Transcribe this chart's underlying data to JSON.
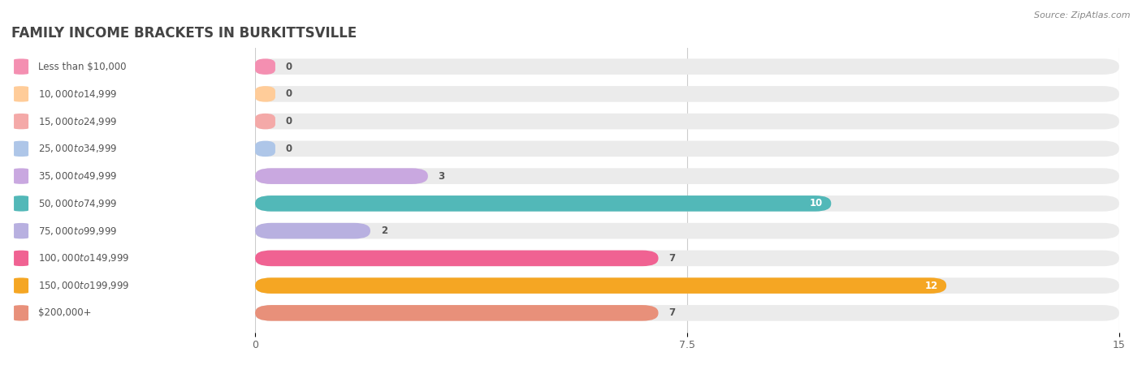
{
  "title": "FAMILY INCOME BRACKETS IN BURKITTSVILLE",
  "source": "Source: ZipAtlas.com",
  "categories": [
    "Less than $10,000",
    "$10,000 to $14,999",
    "$15,000 to $24,999",
    "$25,000 to $34,999",
    "$35,000 to $49,999",
    "$50,000 to $74,999",
    "$75,000 to $99,999",
    "$100,000 to $149,999",
    "$150,000 to $199,999",
    "$200,000+"
  ],
  "values": [
    0,
    0,
    0,
    0,
    3,
    10,
    2,
    7,
    12,
    7
  ],
  "bar_colors": [
    "#f48fb1",
    "#ffcc99",
    "#f4a9a8",
    "#aec6e8",
    "#c9a8e0",
    "#52b8b8",
    "#b8b0e0",
    "#f06292",
    "#f5a623",
    "#e8907a"
  ],
  "xlim": [
    0,
    15
  ],
  "xticks": [
    0,
    7.5,
    15
  ],
  "bg_color": "#ebebeb",
  "title_fontsize": 12,
  "label_fontsize": 8.5,
  "value_fontsize": 8.5,
  "label_color": "#555555",
  "title_color": "#444444",
  "source_text": "Source: ZipAtlas.com"
}
